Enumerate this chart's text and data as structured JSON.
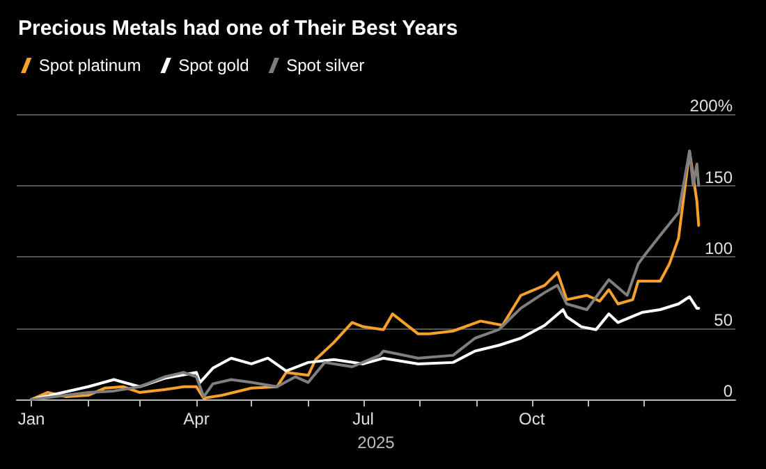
{
  "chart_data": {
    "type": "line",
    "title": "Precious Metals had one of Their Best Years",
    "xlabel": "2025",
    "xlim": [
      "2024-12-24",
      "2026-01-20"
    ],
    "xticks": [
      {
        "value": "2025-01-01",
        "label": "Jan"
      },
      {
        "value": "2025-02-01",
        "label": null
      },
      {
        "value": "2025-03-01",
        "label": null
      },
      {
        "value": "2025-04-01",
        "label": "Apr"
      },
      {
        "value": "2025-05-01",
        "label": null
      },
      {
        "value": "2025-06-01",
        "label": null
      },
      {
        "value": "2025-07-01",
        "label": "Jul"
      },
      {
        "value": "2025-08-01",
        "label": null
      },
      {
        "value": "2025-09-01",
        "label": null
      },
      {
        "value": "2025-10-01",
        "label": "Oct"
      },
      {
        "value": "2025-11-01",
        "label": null
      },
      {
        "value": "2025-12-01",
        "label": null
      }
    ],
    "ylim": [
      0,
      200
    ],
    "yticks": [
      0,
      50,
      100,
      150,
      {
        "value": 200,
        "label": "200%"
      }
    ],
    "grid": "y",
    "legend": "top left",
    "marker": "none",
    "line_style": "solid",
    "series": [
      {
        "name": "Spot platinum",
        "color": "#f7a02a",
        "x": [
          "2025-01-01",
          "2025-01-10",
          "2025-01-20",
          "2025-02-01",
          "2025-02-10",
          "2025-02-20",
          "2025-03-01",
          "2025-03-15",
          "2025-03-25",
          "2025-04-01",
          "2025-04-05",
          "2025-04-15",
          "2025-05-01",
          "2025-05-15",
          "2025-05-20",
          "2025-06-01",
          "2025-06-05",
          "2025-06-15",
          "2025-06-25",
          "2025-07-01",
          "2025-07-12",
          "2025-07-17",
          "2025-07-31",
          "2025-08-06",
          "2025-08-19",
          "2025-09-03",
          "2025-09-15",
          "2025-09-25",
          "2025-10-08",
          "2025-10-15",
          "2025-10-20",
          "2025-10-31",
          "2025-11-07",
          "2025-11-12",
          "2025-11-17",
          "2025-11-25",
          "2025-11-28",
          "2025-12-10",
          "2025-12-15",
          "2025-12-20",
          "2025-12-26",
          "2025-12-30",
          "2025-12-31"
        ],
        "values": [
          0,
          5,
          2,
          3,
          8,
          9,
          5,
          7,
          9,
          9,
          1,
          3,
          8,
          9,
          19,
          17,
          28,
          40,
          54,
          51,
          49,
          60,
          46,
          46,
          48,
          55,
          52,
          73,
          80,
          89,
          70,
          73,
          69,
          77,
          67,
          70,
          83,
          83,
          95,
          113,
          174,
          139,
          122
        ]
      },
      {
        "name": "Spot gold",
        "color": "#ffffff",
        "x": [
          "2025-01-01",
          "2025-02-01",
          "2025-02-15",
          "2025-03-01",
          "2025-03-15",
          "2025-04-01",
          "2025-04-03",
          "2025-04-10",
          "2025-04-20",
          "2025-05-01",
          "2025-05-10",
          "2025-05-20",
          "2025-06-01",
          "2025-06-15",
          "2025-07-01",
          "2025-07-12",
          "2025-07-31",
          "2025-08-19",
          "2025-08-31",
          "2025-09-13",
          "2025-09-25",
          "2025-10-08",
          "2025-10-18",
          "2025-10-20",
          "2025-10-28",
          "2025-11-05",
          "2025-11-12",
          "2025-11-17",
          "2025-11-30",
          "2025-12-10",
          "2025-12-20",
          "2025-12-26",
          "2025-12-30",
          "2025-12-31"
        ],
        "values": [
          0,
          9,
          14,
          9,
          15,
          19,
          12,
          22,
          29,
          25,
          29,
          20,
          26,
          28,
          25,
          29,
          25,
          26,
          34,
          38,
          43,
          52,
          63,
          58,
          51,
          49,
          60,
          54,
          61,
          63,
          67,
          72,
          64,
          64
        ]
      },
      {
        "name": "Spot silver",
        "color": "#7f7f7f",
        "x": [
          "2025-01-01",
          "2025-01-20",
          "2025-02-01",
          "2025-02-15",
          "2025-03-01",
          "2025-03-15",
          "2025-03-25",
          "2025-04-01",
          "2025-04-05",
          "2025-04-10",
          "2025-04-20",
          "2025-05-01",
          "2025-05-15",
          "2025-05-25",
          "2025-06-01",
          "2025-06-10",
          "2025-06-25",
          "2025-07-10",
          "2025-07-12",
          "2025-07-31",
          "2025-08-19",
          "2025-08-31",
          "2025-09-13",
          "2025-09-25",
          "2025-10-08",
          "2025-10-15",
          "2025-10-20",
          "2025-10-31",
          "2025-11-12",
          "2025-11-22",
          "2025-11-28",
          "2025-12-02",
          "2025-12-10",
          "2025-12-20",
          "2025-12-26",
          "2025-12-28",
          "2025-12-30",
          "2025-12-31"
        ],
        "values": [
          0,
          3,
          5,
          6,
          9,
          16,
          19,
          16,
          2,
          11,
          14,
          12,
          9,
          16,
          12,
          26,
          23,
          31,
          34,
          29,
          31,
          43,
          49,
          64,
          75,
          80,
          67,
          63,
          84,
          73,
          95,
          102,
          115,
          131,
          174,
          150,
          165,
          150
        ]
      }
    ]
  }
}
